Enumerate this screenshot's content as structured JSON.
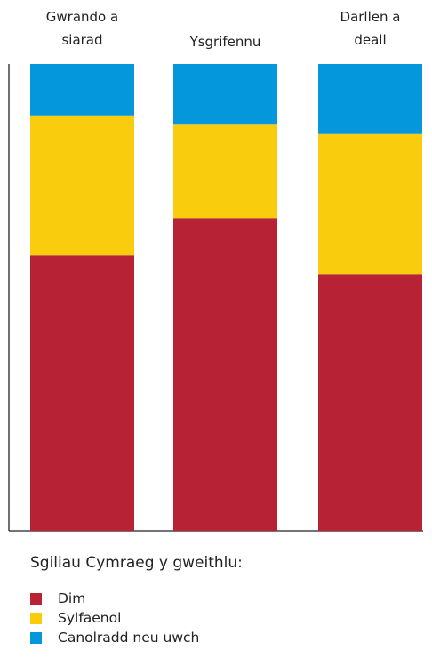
{
  "chart_data": {
    "type": "bar",
    "stacked": true,
    "normalized_percent": true,
    "categories": [
      [
        "Gwrando a",
        "siarad"
      ],
      [
        "Ysgrifennu"
      ],
      [
        "Darllen a",
        "deall"
      ]
    ],
    "series": [
      {
        "name": "Dim",
        "color": "#b82235",
        "values": [
          59,
          67,
          55
        ]
      },
      {
        "name": "Sylfaenol",
        "color": "#f9cc0e",
        "values": [
          30,
          20,
          30
        ]
      },
      {
        "name": "Canolradd neu uwch",
        "color": "#0497dc",
        "values": [
          11,
          13,
          15
        ]
      }
    ],
    "ylim": [
      0,
      100
    ],
    "y_axis_ticks_shown": false,
    "grid": false,
    "legend_position": "bottom-left"
  },
  "legend": {
    "title": "Sgiliau Cymraeg y gweithlu:"
  }
}
